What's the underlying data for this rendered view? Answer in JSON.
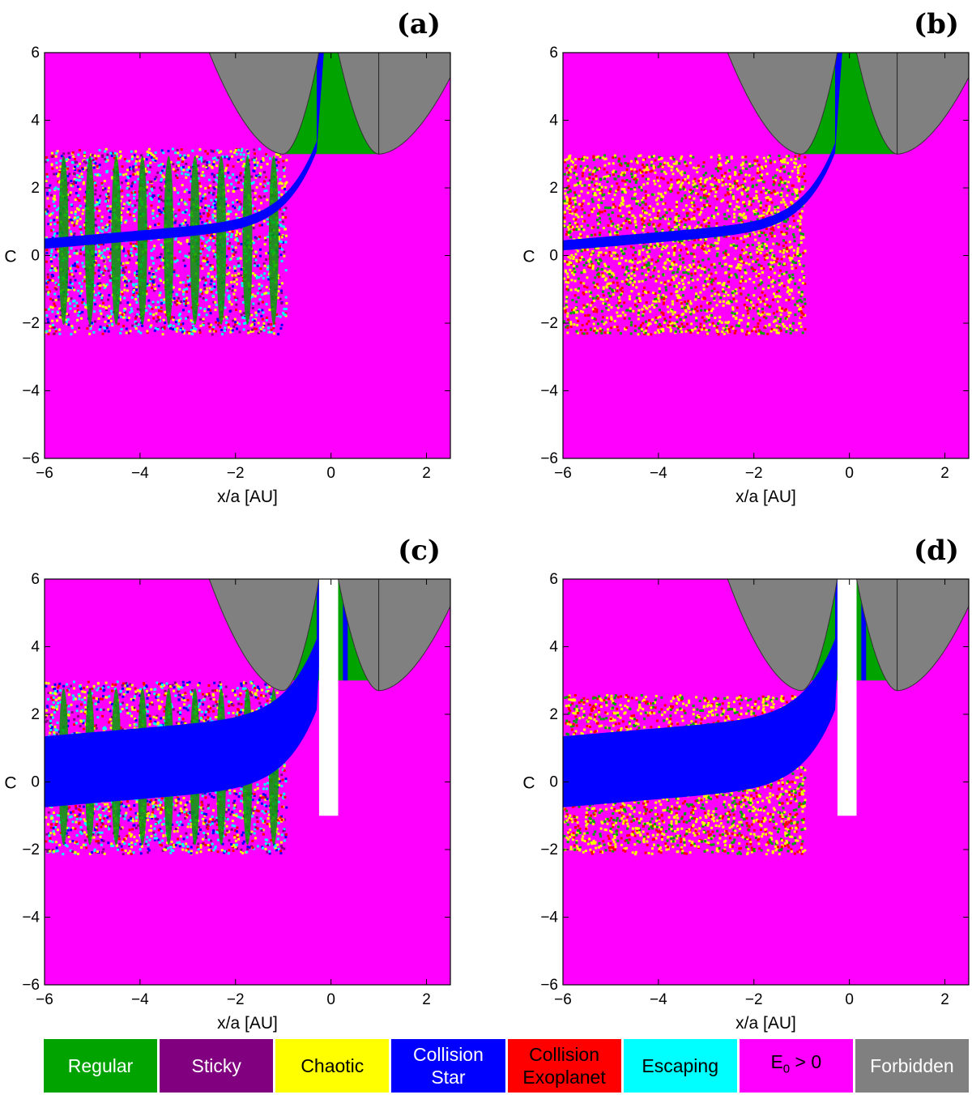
{
  "chart_data": [
    {
      "panel": "(a)",
      "type": "heatmap",
      "xlabel": "x/a [AU]",
      "ylabel": "C",
      "xlim": [
        -6,
        2.5
      ],
      "ylim": [
        -6,
        6
      ],
      "xticks": [
        -6,
        -4,
        -2,
        0,
        2
      ],
      "yticks": [
        -6,
        -4,
        -2,
        0,
        2,
        4,
        6
      ],
      "forbidden_min_C": 3.0,
      "band_C": [
        -2.3,
        3.2
      ],
      "collision_C_at_left": 0.35,
      "collision_thickness": 0.3,
      "gap": false
    },
    {
      "panel": "(b)",
      "type": "heatmap",
      "xlabel": "x/a [AU]",
      "ylabel": "C",
      "xlim": [
        -6,
        2.5
      ],
      "ylim": [
        -6,
        6
      ],
      "xticks": [
        -6,
        -4,
        -2,
        0,
        2
      ],
      "yticks": [
        -6,
        -4,
        -2,
        0,
        2,
        4,
        6
      ],
      "forbidden_min_C": 3.0,
      "band_C": [
        -2.3,
        3.0
      ],
      "collision_C_at_left": 0.3,
      "collision_thickness": 0.3,
      "gap": false
    },
    {
      "panel": "(c)",
      "type": "heatmap",
      "xlabel": "x/a [AU]",
      "ylabel": "C",
      "xlim": [
        -6,
        2.5
      ],
      "ylim": [
        -6,
        6
      ],
      "xticks": [
        -6,
        -4,
        -2,
        0,
        2
      ],
      "yticks": [
        -6,
        -4,
        -2,
        0,
        2,
        4,
        6
      ],
      "forbidden_min_C": 2.7,
      "band_C": [
        -2.1,
        3.0
      ],
      "collision_C_at_left": 0.3,
      "collision_thickness": 2.1,
      "gap": true
    },
    {
      "panel": "(d)",
      "type": "heatmap",
      "xlabel": "x/a [AU]",
      "ylabel": "C",
      "xlim": [
        -6,
        2.5
      ],
      "ylim": [
        -6,
        6
      ],
      "xticks": [
        -6,
        -4,
        -2,
        0,
        2
      ],
      "yticks": [
        -6,
        -4,
        -2,
        0,
        2,
        4,
        6
      ],
      "forbidden_min_C": 2.7,
      "band_C": [
        -2.1,
        2.6
      ],
      "collision_C_at_left": 0.3,
      "collision_thickness": 2.1,
      "gap": true
    }
  ],
  "legend": [
    {
      "label": "Regular",
      "color": "#00a300",
      "text_color": "#ffffff"
    },
    {
      "label": "Sticky",
      "color": "#800080",
      "text_color": "#ffffff"
    },
    {
      "label": "Chaotic",
      "color": "#ffff00",
      "text_color": "#000000"
    },
    {
      "label": "Collision\nStar",
      "color": "#0000ff",
      "text_color": "#ffffff"
    },
    {
      "label": "Collision\nExoplanet",
      "color": "#ff0000",
      "text_color": "#000000"
    },
    {
      "label": "Escaping",
      "color": "#00ffff",
      "text_color": "#000000"
    },
    {
      "label": "E0 > 0",
      "color": "#ff00ff",
      "text_color": "#000000"
    },
    {
      "label": "Forbidden",
      "color": "#808080",
      "text_color": "#ffffff"
    }
  ],
  "colors": {
    "regular": "#00a300",
    "sticky": "#800080",
    "chaotic": "#ffff00",
    "collision_star": "#0000ff",
    "collision_exoplanet": "#ff0000",
    "escaping": "#00ffff",
    "unbound": "#ff00ff",
    "forbidden": "#808080"
  }
}
